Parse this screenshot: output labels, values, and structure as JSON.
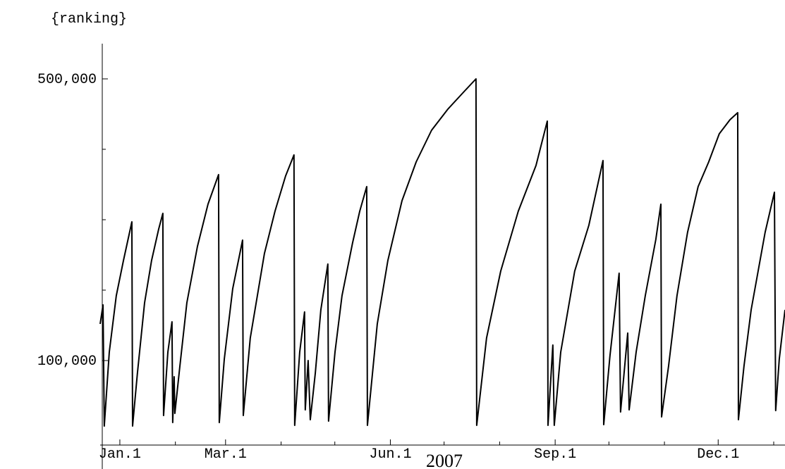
{
  "chart_data": {
    "type": "line",
    "title": "{ranking}",
    "x_label": "2007",
    "color": "#000000",
    "xlim": [
      -11,
      371.3
    ],
    "ylim": [
      -20000,
      550000
    ],
    "xticks": [
      {
        "value": 0,
        "label": "Jan.1"
      },
      {
        "value": 59,
        "label": "Mar.1"
      },
      {
        "value": 151,
        "label": "Jun.1"
      },
      {
        "value": 243,
        "label": "Sep.1"
      },
      {
        "value": 334,
        "label": "Dec.1"
      }
    ],
    "xticks_minor": [
      31,
      90,
      120,
      181,
      212,
      273,
      304,
      365
    ],
    "yticks": [
      {
        "value": 100000,
        "label": "100,000"
      },
      {
        "value": 500000,
        "label": "500,000"
      }
    ],
    "yticks_minor": [
      200000,
      300000,
      400000
    ],
    "x": [
      -11.0,
      -9.4,
      -8.7,
      -5.9,
      -2.0,
      2.0,
      6.7,
      7.1,
      9.8,
      13.8,
      17.7,
      21.7,
      24.0,
      24.4,
      26.8,
      29.1,
      29.5,
      30.3,
      30.7,
      33.5,
      37.4,
      43.3,
      49.2,
      55.1,
      55.5,
      58.3,
      63.0,
      68.5,
      68.9,
      72.8,
      80.7,
      86.6,
      92.5,
      97.2,
      97.6,
      100.4,
      103.1,
      103.5,
      105.1,
      106.3,
      109.1,
      112.2,
      116.1,
      116.5,
      120.1,
      124.0,
      129.9,
      133.9,
      137.8,
      138.2,
      143.7,
      149.6,
      157.5,
      165.4,
      174.0,
      183.1,
      192.9,
      198.8,
      199.2,
      204.7,
      212.6,
      222.4,
      232.3,
      238.6,
      239.0,
      241.7,
      242.5,
      246.1,
      253.9,
      261.8,
      269.7,
      270.1,
      273.6,
      278.7,
      279.5,
      283.5,
      284.3,
      288.2,
      293.3,
      299.2,
      302.0,
      302.4,
      306.3,
      311.0,
      316.9,
      322.8,
      328.7,
      334.6,
      340.6,
      344.9,
      345.3,
      348.4,
      352.4,
      356.3,
      360.2,
      365.4,
      366.1,
      368.1,
      371.3
    ],
    "values": [
      152000,
      179000,
      7000,
      112000,
      192000,
      242000,
      297000,
      7000,
      82000,
      182000,
      242000,
      287000,
      309000,
      22000,
      112000,
      155000,
      12000,
      77000,
      25000,
      92000,
      182000,
      262000,
      322000,
      364000,
      12000,
      102000,
      202000,
      271000,
      22000,
      132000,
      252000,
      312000,
      362000,
      392000,
      8000,
      112000,
      169000,
      30000,
      100000,
      16000,
      82000,
      172000,
      237000,
      14000,
      112000,
      192000,
      267000,
      312000,
      347000,
      8000,
      152000,
      242000,
      327000,
      382000,
      427000,
      457000,
      484000,
      500000,
      8000,
      132000,
      227000,
      312000,
      377000,
      440000,
      8000,
      122000,
      8000,
      112000,
      227000,
      292000,
      384000,
      9000,
      107000,
      224000,
      27000,
      139000,
      30000,
      112000,
      192000,
      272000,
      322000,
      20000,
      92000,
      192000,
      282000,
      347000,
      382000,
      422000,
      442000,
      452000,
      16000,
      92000,
      172000,
      227000,
      282000,
      339000,
      29000,
      102000,
      172000
    ]
  }
}
